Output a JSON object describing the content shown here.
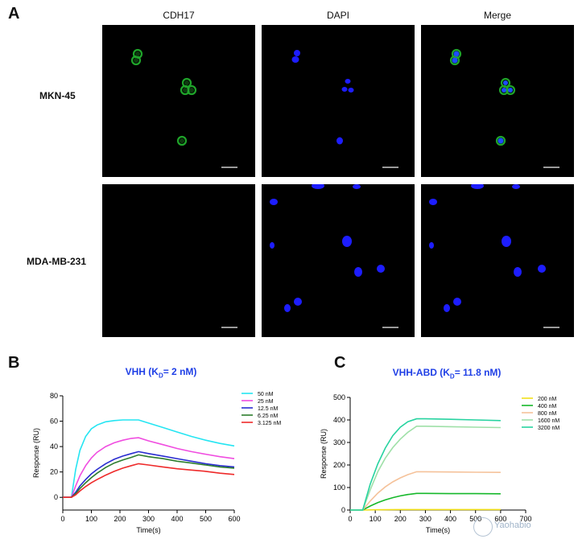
{
  "figure": {
    "panel_a_letter": "A",
    "panel_b_letter": "B",
    "panel_c_letter": "C",
    "columns": [
      "CDH17",
      "DAPI",
      "Merge"
    ],
    "rows": [
      "MKN-45",
      "MDA-MB-231"
    ],
    "colors": {
      "green": "#1fa52a",
      "blue": "#1d1dff",
      "background": "#000000"
    }
  },
  "watermark": {
    "text": "Yaohabio",
    "icon": "logo-icon"
  },
  "chart_data": [
    {
      "type": "line",
      "title": "VHH (K",
      "title_sub": "D",
      "title_tail": "= 2 nM)",
      "xlabel": "Time(s)",
      "ylabel": "Response (RU)",
      "xlim": [
        0,
        600
      ],
      "ylim": [
        -10,
        80
      ],
      "xticks": [
        0,
        100,
        200,
        300,
        400,
        500,
        600
      ],
      "yticks": [
        0,
        20,
        40,
        60,
        80
      ],
      "legend_position": "right",
      "grid": false,
      "series": [
        {
          "name": "50 nM",
          "color": "#25e5f2",
          "x": [
            30,
            45,
            60,
            80,
            100,
            120,
            150,
            180,
            210,
            240,
            265,
            300,
            350,
            400,
            450,
            500,
            550,
            600
          ],
          "y": [
            0,
            22,
            37,
            48,
            54,
            57,
            59.5,
            60.5,
            61,
            61,
            61,
            58.5,
            55,
            51.5,
            48,
            45,
            42.5,
            40.5
          ]
        },
        {
          "name": "25 nM",
          "color": "#f04de0",
          "x": [
            30,
            45,
            60,
            80,
            100,
            120,
            150,
            180,
            210,
            240,
            265,
            300,
            350,
            400,
            450,
            500,
            550,
            600
          ],
          "y": [
            0,
            9,
            17,
            25,
            31,
            35.5,
            40,
            43,
            45,
            46.5,
            47,
            44.5,
            41.5,
            38.5,
            36,
            34,
            32,
            30.5
          ]
        },
        {
          "name": "12.5 nM",
          "color": "#2a2cd0",
          "x": [
            30,
            45,
            60,
            80,
            100,
            120,
            150,
            180,
            210,
            240,
            265,
            300,
            350,
            400,
            450,
            500,
            550,
            600
          ],
          "y": [
            0,
            4,
            9,
            14,
            18.5,
            22,
            26.5,
            30,
            32.5,
            34.5,
            36,
            34.5,
            32.5,
            30.5,
            28.5,
            26.5,
            25,
            24
          ]
        },
        {
          "name": "6.25 nM",
          "color": "#2d7d2d",
          "x": [
            30,
            45,
            60,
            80,
            100,
            120,
            150,
            180,
            210,
            240,
            265,
            300,
            350,
            400,
            450,
            500,
            550,
            600
          ],
          "y": [
            0,
            3,
            7,
            11.5,
            15.5,
            19,
            23.5,
            27,
            29.5,
            31.5,
            33.5,
            32,
            30.5,
            28.5,
            27,
            25.5,
            24,
            23
          ]
        },
        {
          "name": "3.125 nM",
          "color": "#ee2a2a",
          "x": [
            30,
            45,
            60,
            80,
            100,
            120,
            150,
            180,
            210,
            240,
            265,
            300,
            350,
            400,
            450,
            500,
            550,
            600
          ],
          "y": [
            0,
            2,
            5,
            8.5,
            11.5,
            14,
            17.5,
            20.5,
            23,
            25,
            26.5,
            25.5,
            24,
            22.5,
            21.5,
            20.5,
            19,
            18
          ]
        }
      ]
    },
    {
      "type": "line",
      "title": "VHH-ABD (K",
      "title_sub": "D",
      "title_tail": "= 11.8 nM)",
      "xlabel": "Time(s)",
      "ylabel": "Response (RU)",
      "xlim": [
        0,
        700
      ],
      "ylim": [
        0,
        500
      ],
      "xticks": [
        0,
        100,
        200,
        300,
        400,
        500,
        600,
        700
      ],
      "yticks": [
        0,
        100,
        200,
        300,
        400,
        500
      ],
      "legend_position": "right",
      "grid": false,
      "series": [
        {
          "name": "200 nM",
          "color": "#f2e01a",
          "x": [
            50,
            100,
            150,
            200,
            265,
            300,
            400,
            500,
            600
          ],
          "y": [
            0,
            1,
            1.5,
            2,
            2,
            2,
            2,
            2,
            2
          ]
        },
        {
          "name": "400 nM",
          "color": "#16b82a",
          "x": [
            50,
            80,
            110,
            140,
            170,
            200,
            230,
            265,
            300,
            400,
            500,
            600
          ],
          "y": [
            0,
            18,
            33,
            45,
            55,
            63,
            69,
            74,
            74,
            73,
            73,
            72
          ]
        },
        {
          "name": "800 nM",
          "color": "#f5c29a",
          "x": [
            50,
            80,
            110,
            140,
            170,
            200,
            230,
            265,
            300,
            400,
            500,
            600
          ],
          "y": [
            0,
            40,
            75,
            103,
            125,
            143,
            157,
            170,
            170,
            169,
            168,
            167
          ]
        },
        {
          "name": "1600 nM",
          "color": "#9fe0a8",
          "x": [
            50,
            80,
            110,
            140,
            170,
            200,
            230,
            265,
            300,
            400,
            500,
            600
          ],
          "y": [
            0,
            90,
            170,
            230,
            277,
            315,
            345,
            372,
            372,
            370,
            368,
            366
          ]
        },
        {
          "name": "3200 nM",
          "color": "#27d3a0",
          "x": [
            50,
            80,
            110,
            140,
            170,
            200,
            230,
            265,
            300,
            400,
            500,
            600
          ],
          "y": [
            0,
            115,
            205,
            275,
            330,
            368,
            392,
            405,
            405,
            403,
            400,
            397
          ]
        }
      ]
    }
  ]
}
